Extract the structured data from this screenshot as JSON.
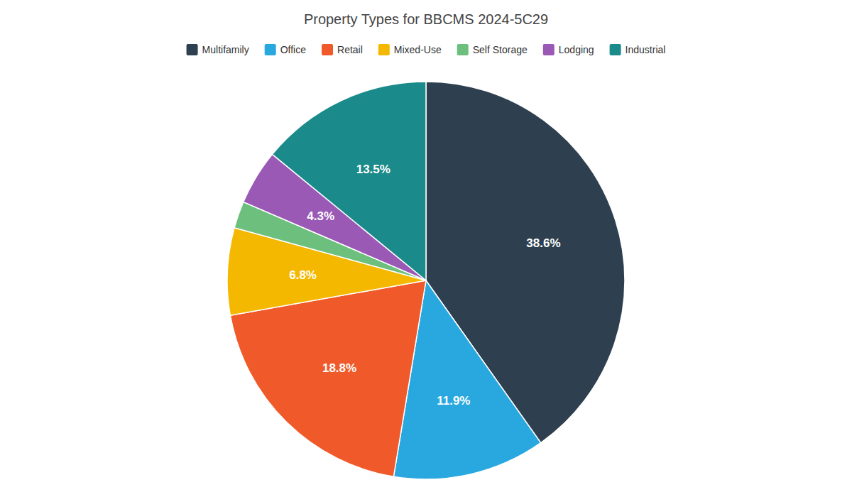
{
  "chart_data": {
    "type": "pie",
    "title": "Property Types for BBCMS 2024-5C29",
    "categories": [
      "Multifamily",
      "Office",
      "Retail",
      "Mixed-Use",
      "Self Storage",
      "Lodging",
      "Industrial"
    ],
    "values": [
      38.6,
      11.9,
      18.8,
      6.8,
      2.1,
      4.3,
      13.5
    ],
    "value_labels": [
      "38.6%",
      "11.9%",
      "18.8%",
      "6.8%",
      null,
      "4.3%",
      "13.5%"
    ],
    "colors": [
      "#2e3f4f",
      "#29a8e0",
      "#f05a2a",
      "#f5b800",
      "#6dbf7e",
      "#9b59b6",
      "#1a8a8a"
    ],
    "data_labels": true,
    "legend": "top"
  }
}
